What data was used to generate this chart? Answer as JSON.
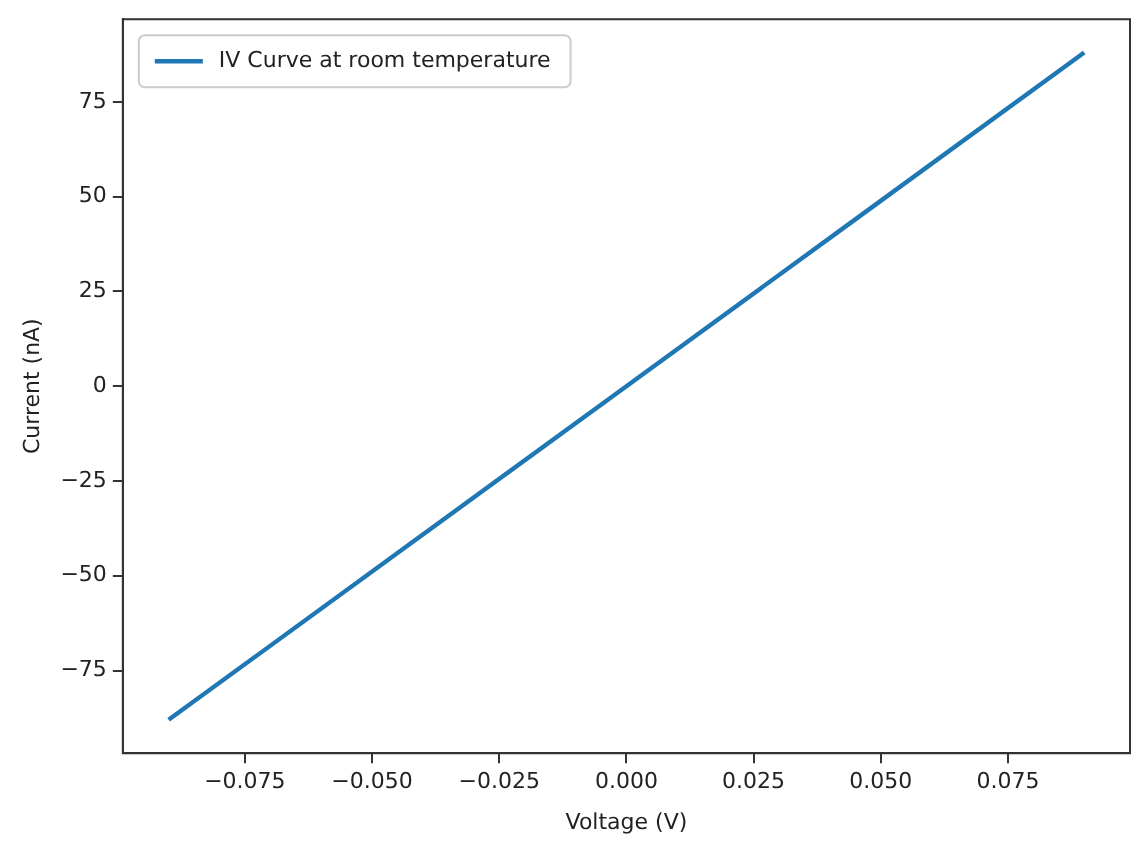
{
  "chart_data": {
    "type": "line",
    "xlabel": "Voltage (V)",
    "ylabel": "Current (nA)",
    "x": [
      -0.09,
      -0.045,
      0,
      0.045,
      0.09
    ],
    "series": [
      {
        "name": "IV Curve at room temperature",
        "color": "#1f77b4",
        "values": [
          -88,
          -44,
          0,
          44,
          88
        ]
      }
    ],
    "xlim": [
      -0.099,
      0.099
    ],
    "xticks": [
      {
        "value": -0.075,
        "label": "−0.075"
      },
      {
        "value": -0.05,
        "label": "−0.050"
      },
      {
        "value": -0.025,
        "label": "−0.025"
      },
      {
        "value": 0,
        "label": "0.000"
      },
      {
        "value": 0.025,
        "label": "0.025"
      },
      {
        "value": 0.05,
        "label": "0.050"
      },
      {
        "value": 0.075,
        "label": "0.075"
      }
    ],
    "ylim": [
      -96.8,
      96.8
    ],
    "yticks": [
      {
        "value": -75,
        "label": "−75"
      },
      {
        "value": -50,
        "label": "−50"
      },
      {
        "value": -25,
        "label": "−25"
      },
      0,
      25,
      50,
      75
    ],
    "legend": "top left",
    "marker": "none",
    "line_style": "solid",
    "grid": false
  }
}
